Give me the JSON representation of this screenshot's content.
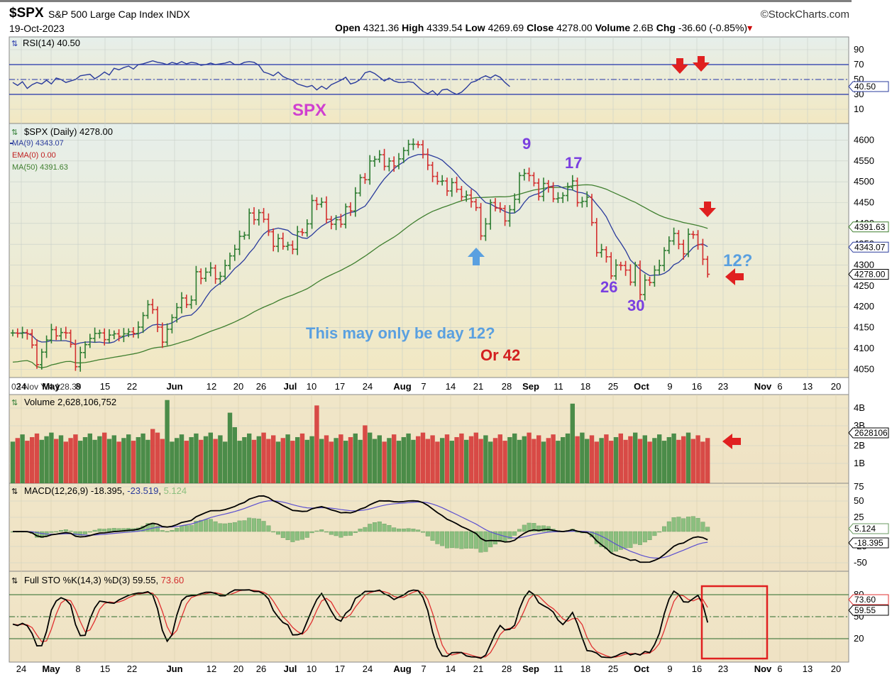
{
  "header": {
    "symbol": "$SPX",
    "name": "S&P 500 Large Cap Index",
    "exchange": "INDX",
    "date": "19-Oct-2023",
    "brand": "StockCharts.com",
    "open_label": "Open",
    "open": "4321.36",
    "high_label": "High",
    "high": "4339.54",
    "low_label": "Low",
    "low": "4269.69",
    "close_label": "Close",
    "close": "4278.00",
    "volume_label": "Volume",
    "volume": "2.6B",
    "chg_label": "Chg",
    "chg": "-36.60 (-0.85%)"
  },
  "colors": {
    "up": "#2e7d32",
    "down": "#d32f2f",
    "ma9": "#2a3b9c",
    "ma50": "#3f7f2f",
    "annot_purple": "#7a3fe0",
    "annot_magenta": "#d03fd0",
    "annot_blue": "#5aa0e0",
    "annot_red": "#d32020",
    "arrow_red": "#e02020",
    "arrow_blue": "#5aa0e0",
    "panel_bg_top": "#e9f0ea",
    "panel_bg_bottom": "#f2e9c6"
  },
  "x_axis": {
    "labels": [
      "24",
      "May",
      "8",
      "15",
      "22",
      "Jun",
      "12",
      "20",
      "26",
      "Jul",
      "10",
      "17",
      "24",
      "Aug",
      "7",
      "14",
      "21",
      "28",
      "Sep",
      "11",
      "18",
      "25",
      "Oct",
      "9",
      "16",
      "23",
      "Nov",
      "6",
      "13",
      "20"
    ],
    "bold": [
      "May",
      "Jun",
      "Jul",
      "Aug",
      "Sep",
      "Oct",
      "Nov"
    ],
    "crosshair_label": "03 Nov Y:4,128.39"
  },
  "rsi": {
    "title": "RSI(14) 40.50",
    "current": "40.50",
    "ticks": [
      "90",
      "70",
      "50",
      "30",
      "10"
    ],
    "values": [
      46,
      42,
      47,
      38,
      43,
      46,
      44,
      49,
      44,
      52,
      50,
      46,
      48,
      50,
      55,
      56,
      57,
      51,
      55,
      60,
      56,
      65,
      63,
      66,
      68,
      64,
      70,
      71,
      73,
      75,
      73,
      72,
      70,
      73,
      71,
      74,
      71,
      73,
      72,
      69,
      70,
      72,
      70,
      71,
      72,
      74,
      70,
      70,
      73,
      74,
      73,
      69,
      60,
      58,
      55,
      60,
      54,
      51,
      49,
      44,
      42,
      40,
      42,
      36,
      41,
      37,
      43,
      46,
      49,
      53,
      44,
      46,
      50,
      59,
      61,
      58,
      53,
      48,
      52,
      48,
      46,
      46,
      47,
      46,
      40,
      34,
      31,
      35,
      29,
      36,
      37,
      33,
      30,
      33,
      39,
      46,
      48,
      52,
      55,
      52,
      56,
      53,
      46,
      40.5
    ]
  },
  "spx_label": "SPX",
  "price": {
    "title": "$SPX (Daily) 4278.00",
    "ma9_label": "MA(9) 4343.07",
    "ema_label": "EMA(0) 0.00",
    "ma50_label": "MA(50) 4391.63",
    "ticks": [
      "4600",
      "4550",
      "4500",
      "4450",
      "4400",
      "4350",
      "4300",
      "4250",
      "4200",
      "4150",
      "4100",
      "4050"
    ],
    "tag_ma50": "4391.63",
    "tag_ma9": "4343.07",
    "tag_close": "4278.00",
    "closes": [
      4137,
      4136,
      4138,
      4135,
      4108,
      4061,
      4091,
      4120,
      4145,
      4130,
      4138,
      4137,
      4110,
      4056,
      4090,
      4109,
      4124,
      4136,
      4137,
      4121,
      4132,
      4135,
      4129,
      4135,
      4140,
      4136,
      4151,
      4179,
      4205,
      4193,
      4151,
      4115,
      4146,
      4174,
      4198,
      4221,
      4205,
      4216,
      4284,
      4268,
      4283,
      4293,
      4267,
      4273,
      4299,
      4322,
      4338,
      4369,
      4372,
      4425,
      4409,
      4426,
      4410,
      4380,
      4345,
      4364,
      4345,
      4348,
      4338,
      4380,
      4378,
      4399,
      4455,
      4446,
      4451,
      4410,
      4398,
      4409,
      4398,
      4440,
      4430,
      4473,
      4510,
      4505,
      4550,
      4554,
      4565,
      4537,
      4550,
      4538,
      4555,
      4575,
      4590,
      4590,
      4589,
      4566,
      4540,
      4513,
      4501,
      4502,
      4478,
      4498,
      4482,
      4464,
      4468,
      4452,
      4438,
      4370,
      4399,
      4450,
      4437,
      4436,
      4406,
      4433,
      4458,
      4515,
      4520,
      4515,
      4497,
      4465,
      4496,
      4488,
      4459,
      4461,
      4467,
      4487,
      4502,
      4450,
      4453,
      4463,
      4402,
      4330,
      4337,
      4320,
      4274,
      4300,
      4299,
      4288,
      4259,
      4300,
      4229,
      4264,
      4258,
      4288,
      4299,
      4335,
      4358,
      4376,
      4350,
      4327,
      4374,
      4373,
      4349,
      4314,
      4278
    ]
  },
  "annotations": {
    "a9": "9",
    "a17": "17",
    "a26": "26",
    "a30": "30",
    "a12q": "12?",
    "note": "This may only be day 12?",
    "or42": "Or 42"
  },
  "volume": {
    "title": "Volume 2,628,106,752",
    "tag": "2628106",
    "ticks": [
      "4B",
      "3B",
      "2B",
      "1B"
    ]
  },
  "macd": {
    "title": "MACD(12,26,9) -18.395",
    "signal": "-23.519",
    "hist": "5.124",
    "ticks": [
      "75",
      "50",
      "25",
      "-25",
      "-50"
    ],
    "tag_hist": "5.124",
    "tag_macd": "-18.395"
  },
  "sto": {
    "title": "Full STO %K(14,3) %D(3) 59.55",
    "d_value": "73.60",
    "ticks": [
      "80",
      "50",
      "20"
    ],
    "tag_d": "73.60",
    "tag_k": "59.55"
  },
  "chart_data": {
    "type": "line",
    "title": "$SPX S&P 500 Large Cap Index INDX",
    "series": [
      {
        "name": "$SPX (Daily)",
        "last": 4278.0
      },
      {
        "name": "MA(9)",
        "last": 4343.07
      },
      {
        "name": "MA(50)",
        "last": 4391.63
      },
      {
        "name": "RSI(14)",
        "last": 40.5
      },
      {
        "name": "MACD(12,26,9)",
        "last": -18.395
      },
      {
        "name": "Full STO %K(14,3)",
        "last": 59.55
      }
    ],
    "ylim_price": [
      4030,
      4640
    ]
  }
}
